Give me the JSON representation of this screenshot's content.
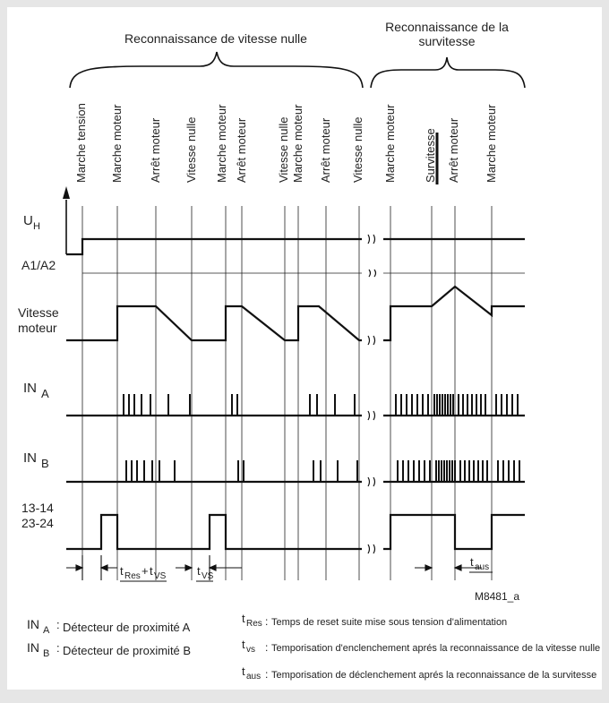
{
  "header": {
    "zero_speed": "Reconnaissance de vitesse nulle",
    "overspeed_line1": "Reconnaissance de la",
    "overspeed_line2": "survitesse"
  },
  "events": [
    "Marche tension",
    "Marche moteur",
    "Arrêt moteur",
    "Vitesse nulle",
    "Marche moteur",
    "Arrêt moteur",
    "Vitesse nulle",
    "Marche moteur",
    "Arrêt moteur",
    "Vitesse nulle",
    "Marche moteur",
    "Survitesse",
    "Arrêt moteur",
    "Marche moteur"
  ],
  "signals": {
    "uh_main": "U",
    "uh_sub": "H",
    "a1a2": "A1/A2",
    "speed_line1": "Vitesse",
    "speed_line2": "moteur",
    "ina_main": "IN",
    "ina_sub": "A",
    "inb_main": "IN",
    "inb_sub": "B",
    "relay_line1": "13-14",
    "relay_line2": "23-24"
  },
  "timing": {
    "tres_t": "t",
    "tres_sub": "Res",
    "plus": "+",
    "tvs1_t": "t",
    "tvs1_sub": "VS",
    "tvs2_t": "t",
    "tvs2_sub": "VS",
    "taus_t": "t",
    "taus_sub": "aus"
  },
  "ref_code": "M8481_a",
  "legend": [
    {
      "sym": "IN",
      "sub": "A",
      "sep": ":",
      "text": "Détecteur de proximité A"
    },
    {
      "sym": "IN",
      "sub": "B",
      "sep": ":",
      "text": "Détecteur de proximité B"
    },
    {
      "sym": "t",
      "sub": "Res",
      "sep": ":",
      "text": "Temps de reset suite mise sous tension d'alimentation"
    },
    {
      "sym": "t",
      "sub": "vs",
      "sep": ":",
      "text": "Temporisation d'enclenchement aprés la reconnaissance de la vitesse nulle"
    },
    {
      "sym": "t",
      "sub": "aus",
      "sep": ":",
      "text": "Temporisation de déclenchement aprés la reconnaissance de la survitesse"
    }
  ]
}
